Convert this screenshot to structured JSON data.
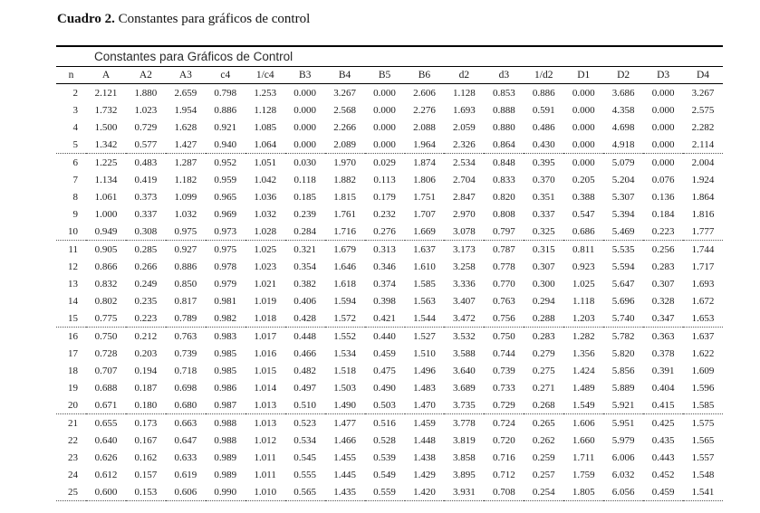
{
  "page": {
    "title_label": "Cuadro 2.",
    "title_text": "Constantes para gráficos de control"
  },
  "colors": {
    "text": "#1c1c1c",
    "rule_solid": "#000000",
    "rule_dotted": "#555555",
    "background": "#ffffff"
  },
  "table": {
    "group_header": "Constantes para Gráficos de Control",
    "columns": [
      "n",
      "A",
      "A2",
      "A3",
      "c4",
      "1/c4",
      "B3",
      "B4",
      "B5",
      "B6",
      "d2",
      "d3",
      "1/d2",
      "D1",
      "D2",
      "D3",
      "D4"
    ],
    "rows": [
      [
        2,
        "2.121",
        "1.880",
        "2.659",
        "0.798",
        "1.253",
        "0.000",
        "3.267",
        "0.000",
        "2.606",
        "1.128",
        "0.853",
        "0.886",
        "0.000",
        "3.686",
        "0.000",
        "3.267"
      ],
      [
        3,
        "1.732",
        "1.023",
        "1.954",
        "0.886",
        "1.128",
        "0.000",
        "2.568",
        "0.000",
        "2.276",
        "1.693",
        "0.888",
        "0.591",
        "0.000",
        "4.358",
        "0.000",
        "2.575"
      ],
      [
        4,
        "1.500",
        "0.729",
        "1.628",
        "0.921",
        "1.085",
        "0.000",
        "2.266",
        "0.000",
        "2.088",
        "2.059",
        "0.880",
        "0.486",
        "0.000",
        "4.698",
        "0.000",
        "2.282"
      ],
      [
        5,
        "1.342",
        "0.577",
        "1.427",
        "0.940",
        "1.064",
        "0.000",
        "2.089",
        "0.000",
        "1.964",
        "2.326",
        "0.864",
        "0.430",
        "0.000",
        "4.918",
        "0.000",
        "2.114"
      ],
      [
        6,
        "1.225",
        "0.483",
        "1.287",
        "0.952",
        "1.051",
        "0.030",
        "1.970",
        "0.029",
        "1.874",
        "2.534",
        "0.848",
        "0.395",
        "0.000",
        "5.079",
        "0.000",
        "2.004"
      ],
      [
        7,
        "1.134",
        "0.419",
        "1.182",
        "0.959",
        "1.042",
        "0.118",
        "1.882",
        "0.113",
        "1.806",
        "2.704",
        "0.833",
        "0.370",
        "0.205",
        "5.204",
        "0.076",
        "1.924"
      ],
      [
        8,
        "1.061",
        "0.373",
        "1.099",
        "0.965",
        "1.036",
        "0.185",
        "1.815",
        "0.179",
        "1.751",
        "2.847",
        "0.820",
        "0.351",
        "0.388",
        "5.307",
        "0.136",
        "1.864"
      ],
      [
        9,
        "1.000",
        "0.337",
        "1.032",
        "0.969",
        "1.032",
        "0.239",
        "1.761",
        "0.232",
        "1.707",
        "2.970",
        "0.808",
        "0.337",
        "0.547",
        "5.394",
        "0.184",
        "1.816"
      ],
      [
        10,
        "0.949",
        "0.308",
        "0.975",
        "0.973",
        "1.028",
        "0.284",
        "1.716",
        "0.276",
        "1.669",
        "3.078",
        "0.797",
        "0.325",
        "0.686",
        "5.469",
        "0.223",
        "1.777"
      ],
      [
        11,
        "0.905",
        "0.285",
        "0.927",
        "0.975",
        "1.025",
        "0.321",
        "1.679",
        "0.313",
        "1.637",
        "3.173",
        "0.787",
        "0.315",
        "0.811",
        "5.535",
        "0.256",
        "1.744"
      ],
      [
        12,
        "0.866",
        "0.266",
        "0.886",
        "0.978",
        "1.023",
        "0.354",
        "1.646",
        "0.346",
        "1.610",
        "3.258",
        "0.778",
        "0.307",
        "0.923",
        "5.594",
        "0.283",
        "1.717"
      ],
      [
        13,
        "0.832",
        "0.249",
        "0.850",
        "0.979",
        "1.021",
        "0.382",
        "1.618",
        "0.374",
        "1.585",
        "3.336",
        "0.770",
        "0.300",
        "1.025",
        "5.647",
        "0.307",
        "1.693"
      ],
      [
        14,
        "0.802",
        "0.235",
        "0.817",
        "0.981",
        "1.019",
        "0.406",
        "1.594",
        "0.398",
        "1.563",
        "3.407",
        "0.763",
        "0.294",
        "1.118",
        "5.696",
        "0.328",
        "1.672"
      ],
      [
        15,
        "0.775",
        "0.223",
        "0.789",
        "0.982",
        "1.018",
        "0.428",
        "1.572",
        "0.421",
        "1.544",
        "3.472",
        "0.756",
        "0.288",
        "1.203",
        "5.740",
        "0.347",
        "1.653"
      ],
      [
        16,
        "0.750",
        "0.212",
        "0.763",
        "0.983",
        "1.017",
        "0.448",
        "1.552",
        "0.440",
        "1.527",
        "3.532",
        "0.750",
        "0.283",
        "1.282",
        "5.782",
        "0.363",
        "1.637"
      ],
      [
        17,
        "0.728",
        "0.203",
        "0.739",
        "0.985",
        "1.016",
        "0.466",
        "1.534",
        "0.459",
        "1.510",
        "3.588",
        "0.744",
        "0.279",
        "1.356",
        "5.820",
        "0.378",
        "1.622"
      ],
      [
        18,
        "0.707",
        "0.194",
        "0.718",
        "0.985",
        "1.015",
        "0.482",
        "1.518",
        "0.475",
        "1.496",
        "3.640",
        "0.739",
        "0.275",
        "1.424",
        "5.856",
        "0.391",
        "1.609"
      ],
      [
        19,
        "0.688",
        "0.187",
        "0.698",
        "0.986",
        "1.014",
        "0.497",
        "1.503",
        "0.490",
        "1.483",
        "3.689",
        "0.733",
        "0.271",
        "1.489",
        "5.889",
        "0.404",
        "1.596"
      ],
      [
        20,
        "0.671",
        "0.180",
        "0.680",
        "0.987",
        "1.013",
        "0.510",
        "1.490",
        "0.503",
        "1.470",
        "3.735",
        "0.729",
        "0.268",
        "1.549",
        "5.921",
        "0.415",
        "1.585"
      ],
      [
        21,
        "0.655",
        "0.173",
        "0.663",
        "0.988",
        "1.013",
        "0.523",
        "1.477",
        "0.516",
        "1.459",
        "3.778",
        "0.724",
        "0.265",
        "1.606",
        "5.951",
        "0.425",
        "1.575"
      ],
      [
        22,
        "0.640",
        "0.167",
        "0.647",
        "0.988",
        "1.012",
        "0.534",
        "1.466",
        "0.528",
        "1.448",
        "3.819",
        "0.720",
        "0.262",
        "1.660",
        "5.979",
        "0.435",
        "1.565"
      ],
      [
        23,
        "0.626",
        "0.162",
        "0.633",
        "0.989",
        "1.011",
        "0.545",
        "1.455",
        "0.539",
        "1.438",
        "3.858",
        "0.716",
        "0.259",
        "1.711",
        "6.006",
        "0.443",
        "1.557"
      ],
      [
        24,
        "0.612",
        "0.157",
        "0.619",
        "0.989",
        "1.011",
        "0.555",
        "1.445",
        "0.549",
        "1.429",
        "3.895",
        "0.712",
        "0.257",
        "1.759",
        "6.032",
        "0.452",
        "1.548"
      ],
      [
        25,
        "0.600",
        "0.153",
        "0.606",
        "0.990",
        "1.010",
        "0.565",
        "1.435",
        "0.559",
        "1.420",
        "3.931",
        "0.708",
        "0.254",
        "1.805",
        "6.056",
        "0.459",
        "1.541"
      ]
    ]
  }
}
